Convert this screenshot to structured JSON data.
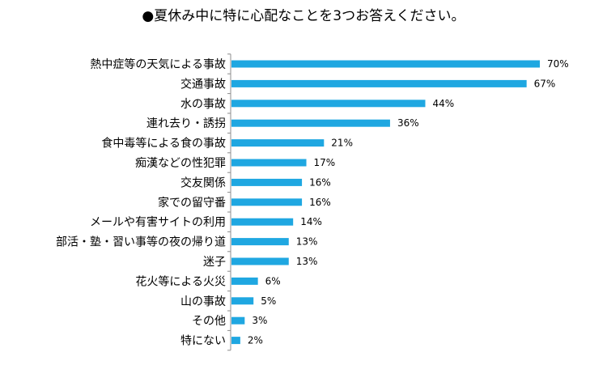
{
  "chart_data": {
    "type": "bar",
    "orientation": "horizontal",
    "title": "●夏休み中に特に心配なことを3つお答えください。",
    "categories": [
      "熱中症等の天気による事故",
      "交通事故",
      "水の事故",
      "連れ去り・誘拐",
      "食中毒等による食の事故",
      "痴漢などの性犯罪",
      "交友関係",
      "家での留守番",
      "メールや有害サイトの利用",
      "部活・塾・習い事等の夜の帰り道",
      "迷子",
      "花火等による火災",
      "山の事故",
      "その他",
      "特にない"
    ],
    "values": [
      70,
      67,
      44,
      36,
      21,
      17,
      16,
      16,
      14,
      13,
      13,
      6,
      5,
      3,
      2
    ],
    "value_labels": [
      "70%",
      "67%",
      "44%",
      "36%",
      "21%",
      "17%",
      "16%",
      "16%",
      "14%",
      "13%",
      "13%",
      "6%",
      "5%",
      "3%",
      "2%"
    ],
    "unit": "%",
    "xlim": [
      0,
      70
    ],
    "bar_color": "#1fa7e1",
    "axis_color": "#8c8c8c",
    "grid": false,
    "legend": "none"
  }
}
